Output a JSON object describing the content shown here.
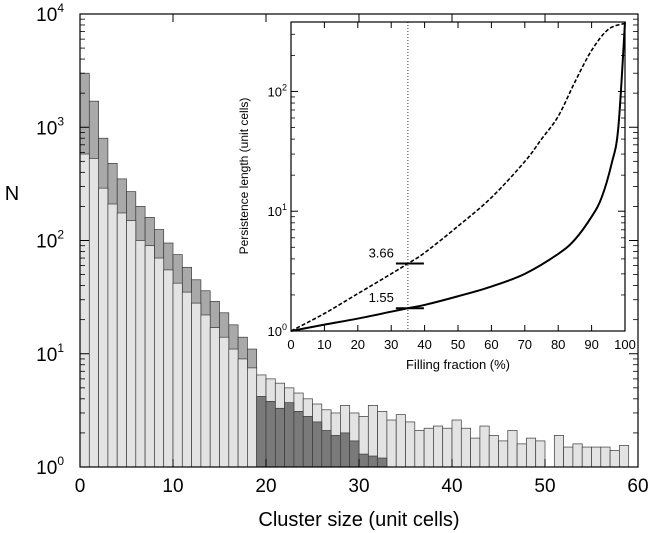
{
  "chart_data": [
    {
      "type": "bar",
      "panel": "main",
      "xlabel": "Cluster size (unit cells)",
      "ylabel": "N",
      "xlim": [
        0,
        60
      ],
      "ylim": [
        1,
        10000
      ],
      "yscale": "log",
      "x_ticks": [
        "0",
        "10",
        "20",
        "30",
        "40",
        "50",
        "60"
      ],
      "y_ticks": [
        {
          "base": "10",
          "exp": "0"
        },
        {
          "base": "10",
          "exp": "1"
        },
        {
          "base": "10",
          "exp": "2"
        },
        {
          "base": "10",
          "exp": "3"
        },
        {
          "base": "10",
          "exp": "4"
        }
      ],
      "grid": false,
      "bin_width": 1,
      "series": [
        {
          "style": "medium-gray overlay histogram",
          "color": "#a9a9a9",
          "start_x": 0,
          "values": [
            3000,
            1700,
            800,
            480,
            350,
            270,
            200,
            160,
            125,
            95,
            75,
            58,
            45,
            36,
            29,
            23,
            18,
            14,
            11
          ]
        },
        {
          "style": "light-gray histogram",
          "color": "#e3e3e3",
          "start_x": 0,
          "values": [
            580,
            530,
            290,
            210,
            175,
            150,
            100,
            90,
            70,
            55,
            42,
            35,
            28,
            22,
            17,
            14,
            11,
            9,
            7.5,
            6.5,
            6,
            5.5,
            5,
            4.5,
            4,
            3.6,
            3.2,
            3,
            3.5,
            3,
            2.8,
            3.5,
            3.1,
            2.6,
            2.9,
            2.5,
            2.1,
            2.2,
            2.3,
            2.2,
            2.6,
            2.2,
            1.8,
            2.3,
            1.9,
            1.7,
            2.1,
            1.6,
            1.8,
            1.7,
            1.5,
            1.9,
            1.5,
            1.6,
            1.5,
            1.5,
            1.5,
            1.4,
            1.55
          ],
          "gaps_at_x": [
            50
          ]
        },
        {
          "style": "dark-gray histogram",
          "color": "#7a7a7a",
          "start_x": 19,
          "values": [
            4.2,
            3.8,
            3.3,
            3.7,
            3.1,
            2.8,
            2.5,
            2.1,
            1.9,
            2.0,
            1.7,
            1.3,
            1.25,
            1.2
          ]
        }
      ]
    },
    {
      "type": "line",
      "panel": "inset",
      "xlabel": "Filling fraction (%)",
      "ylabel": "Persistence length (unit cells)",
      "xlim": [
        0,
        100
      ],
      "ylim": [
        1,
        380
      ],
      "yscale": "log",
      "x_ticks": [
        "0",
        "10",
        "20",
        "30",
        "40",
        "50",
        "60",
        "70",
        "80",
        "90",
        "100"
      ],
      "y_ticks": [
        {
          "base": "10",
          "exp": "0"
        },
        {
          "base": "10",
          "exp": "1"
        },
        {
          "base": "10",
          "exp": "2"
        }
      ],
      "grid": false,
      "vline_x": 35,
      "series": [
        {
          "style": "dashed",
          "x": [
            0,
            10,
            20,
            30,
            35,
            40,
            50,
            60,
            70,
            75,
            80,
            85,
            90,
            95,
            100
          ],
          "y": [
            1,
            1.4,
            2.05,
            3.0,
            3.66,
            4.5,
            7.5,
            13,
            26,
            40,
            62,
            120,
            220,
            330,
            370
          ]
        },
        {
          "style": "solid",
          "x": [
            0,
            10,
            20,
            30,
            35,
            40,
            50,
            60,
            70,
            80,
            85,
            90,
            93,
            96,
            98,
            100
          ],
          "y": [
            1,
            1.13,
            1.27,
            1.45,
            1.55,
            1.65,
            1.95,
            2.35,
            3.0,
            4.4,
            5.8,
            9,
            13,
            25,
            50,
            380
          ]
        }
      ],
      "annotations": [
        {
          "text": "3.66",
          "x": 35,
          "y": 3.66
        },
        {
          "text": "1.55",
          "x": 35,
          "y": 1.55
        }
      ]
    }
  ]
}
